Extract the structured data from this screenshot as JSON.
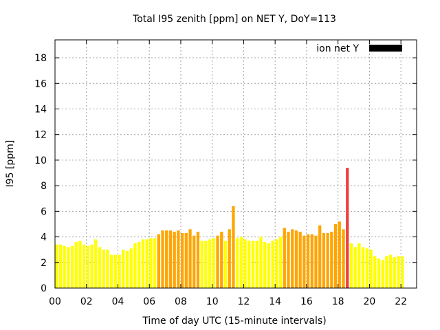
{
  "chart_data": {
    "type": "bar",
    "title": "Total I95 zenith [ppm] on NET Y, DoY=113",
    "xlabel": "Time of day UTC (15-minute intervals)",
    "ylabel": "I95 [ppm]",
    "legend": {
      "label": "ion net Y",
      "color": "#000000",
      "position": "top-right"
    },
    "xlim": [
      0,
      23
    ],
    "ylim": [
      0,
      19.4
    ],
    "grid": true,
    "x_ticks": [
      "00",
      "02",
      "04",
      "06",
      "08",
      "10",
      "12",
      "14",
      "16",
      "18",
      "20",
      "22"
    ],
    "y_ticks": [
      "0",
      "2",
      "4",
      "6",
      "8",
      "10",
      "12",
      "14",
      "16",
      "18"
    ],
    "interval_hours": 0.25,
    "colors": {
      "low": "#ffff00",
      "medium": "#ffa500",
      "high": "#ee4040"
    },
    "bars": [
      {
        "x": 0.0,
        "value": 3.4,
        "level": "low"
      },
      {
        "x": 0.25,
        "value": 3.4,
        "level": "low"
      },
      {
        "x": 0.5,
        "value": 3.3,
        "level": "low"
      },
      {
        "x": 0.75,
        "value": 3.2,
        "level": "low"
      },
      {
        "x": 1.0,
        "value": 3.3,
        "level": "low"
      },
      {
        "x": 1.25,
        "value": 3.6,
        "level": "low"
      },
      {
        "x": 1.5,
        "value": 3.7,
        "level": "low"
      },
      {
        "x": 1.75,
        "value": 3.4,
        "level": "low"
      },
      {
        "x": 2.0,
        "value": 3.3,
        "level": "low"
      },
      {
        "x": 2.25,
        "value": 3.4,
        "level": "low"
      },
      {
        "x": 2.5,
        "value": 3.8,
        "level": "low"
      },
      {
        "x": 2.75,
        "value": 3.2,
        "level": "low"
      },
      {
        "x": 3.0,
        "value": 3.0,
        "level": "low"
      },
      {
        "x": 3.25,
        "value": 3.0,
        "level": "low"
      },
      {
        "x": 3.5,
        "value": 2.6,
        "level": "low"
      },
      {
        "x": 3.75,
        "value": 2.6,
        "level": "low"
      },
      {
        "x": 4.0,
        "value": 2.6,
        "level": "low"
      },
      {
        "x": 4.25,
        "value": 3.0,
        "level": "low"
      },
      {
        "x": 4.5,
        "value": 2.9,
        "level": "low"
      },
      {
        "x": 4.75,
        "value": 3.1,
        "level": "low"
      },
      {
        "x": 5.0,
        "value": 3.5,
        "level": "low"
      },
      {
        "x": 5.25,
        "value": 3.6,
        "level": "low"
      },
      {
        "x": 5.5,
        "value": 3.8,
        "level": "low"
      },
      {
        "x": 5.75,
        "value": 3.8,
        "level": "low"
      },
      {
        "x": 6.0,
        "value": 3.9,
        "level": "low"
      },
      {
        "x": 6.25,
        "value": 3.9,
        "level": "low"
      },
      {
        "x": 6.5,
        "value": 4.2,
        "level": "medium"
      },
      {
        "x": 6.75,
        "value": 4.5,
        "level": "medium"
      },
      {
        "x": 7.0,
        "value": 4.5,
        "level": "medium"
      },
      {
        "x": 7.25,
        "value": 4.5,
        "level": "medium"
      },
      {
        "x": 7.5,
        "value": 4.4,
        "level": "medium"
      },
      {
        "x": 7.75,
        "value": 4.5,
        "level": "medium"
      },
      {
        "x": 8.0,
        "value": 4.3,
        "level": "medium"
      },
      {
        "x": 8.25,
        "value": 4.3,
        "level": "medium"
      },
      {
        "x": 8.5,
        "value": 4.6,
        "level": "medium"
      },
      {
        "x": 8.75,
        "value": 4.1,
        "level": "medium"
      },
      {
        "x": 9.0,
        "value": 4.4,
        "level": "medium"
      },
      {
        "x": 9.25,
        "value": 3.7,
        "level": "low"
      },
      {
        "x": 9.5,
        "value": 3.7,
        "level": "low"
      },
      {
        "x": 9.75,
        "value": 3.8,
        "level": "low"
      },
      {
        "x": 10.0,
        "value": 3.9,
        "level": "low"
      },
      {
        "x": 10.25,
        "value": 4.1,
        "level": "medium"
      },
      {
        "x": 10.5,
        "value": 4.4,
        "level": "medium"
      },
      {
        "x": 10.75,
        "value": 3.7,
        "level": "low"
      },
      {
        "x": 11.0,
        "value": 4.6,
        "level": "medium"
      },
      {
        "x": 11.25,
        "value": 6.4,
        "level": "medium"
      },
      {
        "x": 11.5,
        "value": 3.9,
        "level": "low"
      },
      {
        "x": 11.75,
        "value": 4.0,
        "level": "low"
      },
      {
        "x": 12.0,
        "value": 3.8,
        "level": "low"
      },
      {
        "x": 12.25,
        "value": 3.7,
        "level": "low"
      },
      {
        "x": 12.5,
        "value": 3.7,
        "level": "low"
      },
      {
        "x": 12.75,
        "value": 3.7,
        "level": "low"
      },
      {
        "x": 13.0,
        "value": 4.0,
        "level": "low"
      },
      {
        "x": 13.25,
        "value": 3.6,
        "level": "low"
      },
      {
        "x": 13.5,
        "value": 3.5,
        "level": "low"
      },
      {
        "x": 13.75,
        "value": 3.7,
        "level": "low"
      },
      {
        "x": 14.0,
        "value": 3.8,
        "level": "low"
      },
      {
        "x": 14.25,
        "value": 4.0,
        "level": "low"
      },
      {
        "x": 14.5,
        "value": 4.7,
        "level": "medium"
      },
      {
        "x": 14.75,
        "value": 4.4,
        "level": "medium"
      },
      {
        "x": 15.0,
        "value": 4.6,
        "level": "medium"
      },
      {
        "x": 15.25,
        "value": 4.5,
        "level": "medium"
      },
      {
        "x": 15.5,
        "value": 4.4,
        "level": "medium"
      },
      {
        "x": 15.75,
        "value": 4.1,
        "level": "medium"
      },
      {
        "x": 16.0,
        "value": 4.2,
        "level": "medium"
      },
      {
        "x": 16.25,
        "value": 4.2,
        "level": "medium"
      },
      {
        "x": 16.5,
        "value": 4.1,
        "level": "medium"
      },
      {
        "x": 16.75,
        "value": 4.9,
        "level": "medium"
      },
      {
        "x": 17.0,
        "value": 4.3,
        "level": "medium"
      },
      {
        "x": 17.25,
        "value": 4.3,
        "level": "medium"
      },
      {
        "x": 17.5,
        "value": 4.4,
        "level": "medium"
      },
      {
        "x": 17.75,
        "value": 5.0,
        "level": "medium"
      },
      {
        "x": 18.0,
        "value": 5.2,
        "level": "medium"
      },
      {
        "x": 18.25,
        "value": 4.6,
        "level": "medium"
      },
      {
        "x": 18.5,
        "value": 9.4,
        "level": "high"
      },
      {
        "x": 18.75,
        "value": 3.5,
        "level": "low"
      },
      {
        "x": 19.0,
        "value": 3.2,
        "level": "low"
      },
      {
        "x": 19.25,
        "value": 3.5,
        "level": "low"
      },
      {
        "x": 19.5,
        "value": 3.2,
        "level": "low"
      },
      {
        "x": 19.75,
        "value": 3.1,
        "level": "low"
      },
      {
        "x": 20.0,
        "value": 3.0,
        "level": "low"
      },
      {
        "x": 20.25,
        "value": 2.5,
        "level": "low"
      },
      {
        "x": 20.5,
        "value": 2.3,
        "level": "low"
      },
      {
        "x": 20.75,
        "value": 2.2,
        "level": "low"
      },
      {
        "x": 21.0,
        "value": 2.5,
        "level": "low"
      },
      {
        "x": 21.25,
        "value": 2.6,
        "level": "low"
      },
      {
        "x": 21.5,
        "value": 2.4,
        "level": "low"
      },
      {
        "x": 21.75,
        "value": 2.5,
        "level": "low"
      },
      {
        "x": 22.0,
        "value": 2.5,
        "level": "low"
      }
    ]
  }
}
